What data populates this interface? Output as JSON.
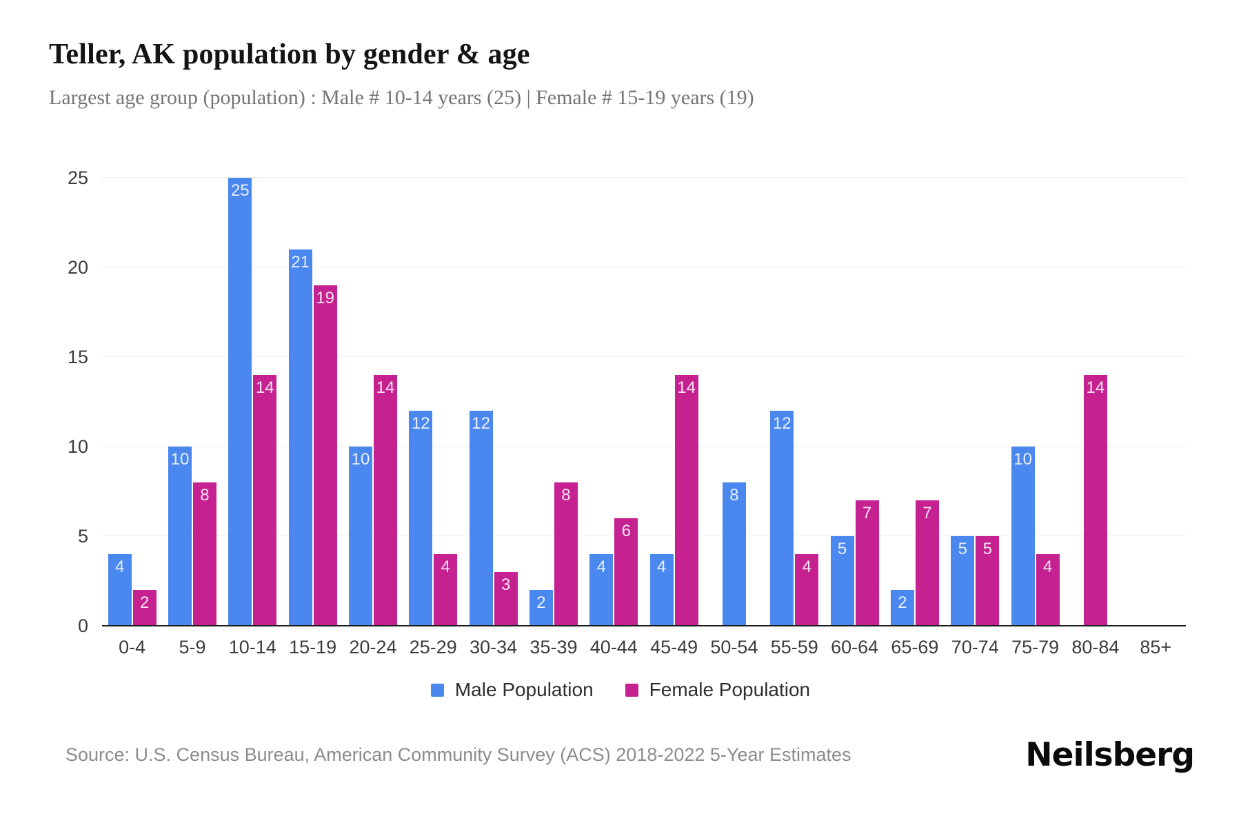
{
  "header": {
    "title": "Teller, AK population by gender & age",
    "subtitle": "Largest age group (population) : Male # 10-14 years (25) | Female # 15-19 years (19)"
  },
  "chart_data": {
    "type": "bar",
    "categories": [
      "0-4",
      "5-9",
      "10-14",
      "15-19",
      "20-24",
      "25-29",
      "30-34",
      "35-39",
      "40-44",
      "45-49",
      "50-54",
      "55-59",
      "60-64",
      "65-69",
      "70-74",
      "75-79",
      "80-84",
      "85+"
    ],
    "series": [
      {
        "name": "Male Population",
        "color": "#4a87ee",
        "values": [
          4,
          10,
          25,
          21,
          10,
          12,
          12,
          2,
          4,
          4,
          8,
          12,
          5,
          2,
          5,
          10,
          0,
          0
        ]
      },
      {
        "name": "Female Population",
        "color": "#c62191",
        "values": [
          2,
          8,
          14,
          19,
          14,
          4,
          3,
          8,
          6,
          14,
          0,
          4,
          7,
          7,
          5,
          4,
          14,
          0
        ]
      }
    ],
    "title": "Teller, AK population by gender & age",
    "xlabel": "",
    "ylabel": "",
    "ylim": [
      0,
      25
    ],
    "yticks": [
      0,
      5,
      10,
      15,
      20,
      25
    ],
    "grid": true,
    "bar_value_labels": true,
    "legend_position": "bottom"
  },
  "legend": {
    "items": [
      {
        "label": "Male Population",
        "color": "#4a87ee"
      },
      {
        "label": "Female Population",
        "color": "#c62191"
      }
    ]
  },
  "footer": {
    "source": "Source: U.S. Census Bureau, American Community Survey (ACS) 2018-2022 5-Year Estimates",
    "logo": "Neilsberg"
  }
}
